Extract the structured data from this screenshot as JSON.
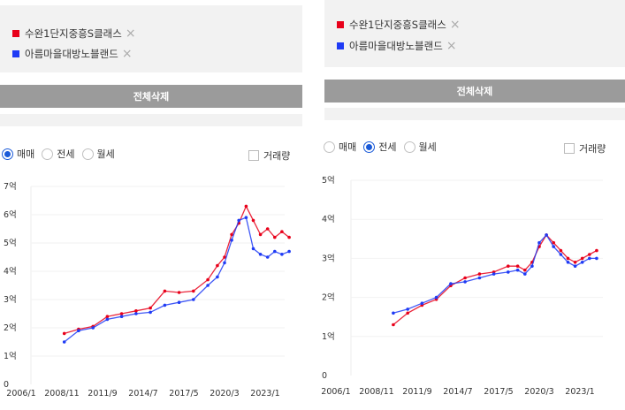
{
  "panels": [
    {
      "tags": [
        {
          "label": "수완1단지중흥S클래스",
          "color": "#e8001a"
        },
        {
          "label": "아름마을대방노블랜드",
          "color": "#1f3bf5"
        }
      ],
      "delete_all_label": "전체삭제",
      "deal_types": [
        {
          "label": "매매",
          "selected": true
        },
        {
          "label": "전세",
          "selected": false
        },
        {
          "label": "월세",
          "selected": false
        }
      ],
      "volume_label": "거래량",
      "volume_checked": false,
      "chart_data": {
        "type": "line",
        "ylim": [
          0,
          7
        ],
        "y_ticks": [
          "0",
          "1억",
          "2억",
          "3억",
          "4억",
          "5억",
          "6억",
          "7억"
        ],
        "x_ticks": [
          "2006/1",
          "2008/11",
          "2011/9",
          "2014/7",
          "2017/5",
          "2020/3",
          "2023/1"
        ],
        "x": [
          "2009/1",
          "2010/1",
          "2011/1",
          "2012/1",
          "2013/1",
          "2014/1",
          "2015/1",
          "2016/1",
          "2017/1",
          "2018/1",
          "2019/1",
          "2019/9",
          "2020/3",
          "2020/9",
          "2021/3",
          "2021/9",
          "2022/3",
          "2022/9",
          "2023/3",
          "2023/9",
          "2024/3",
          "2024/9"
        ],
        "series": [
          {
            "name": "수완1단지중흥S클래스",
            "color": "#e8001a",
            "values": [
              1.8,
              1.95,
              2.05,
              2.4,
              2.5,
              2.6,
              2.7,
              3.3,
              3.25,
              3.3,
              3.7,
              4.2,
              4.5,
              5.3,
              5.7,
              6.3,
              5.8,
              5.3,
              5.5,
              5.2,
              5.4,
              5.2
            ]
          },
          {
            "name": "아름마을대방노블랜드",
            "color": "#1f3bf5",
            "values": [
              1.5,
              1.9,
              2.0,
              2.3,
              2.4,
              2.5,
              2.55,
              2.8,
              2.9,
              3.0,
              3.5,
              3.8,
              4.3,
              5.1,
              5.8,
              5.9,
              4.8,
              4.6,
              4.5,
              4.7,
              4.6,
              4.7
            ]
          }
        ]
      }
    },
    {
      "tags": [
        {
          "label": "수완1단지중흥S클래스",
          "color": "#e8001a"
        },
        {
          "label": "아름마을대방노블랜드",
          "color": "#1f3bf5"
        }
      ],
      "delete_all_label": "전체삭제",
      "deal_types": [
        {
          "label": "매매",
          "selected": false
        },
        {
          "label": "전세",
          "selected": true
        },
        {
          "label": "월세",
          "selected": false
        }
      ],
      "volume_label": "거래량",
      "volume_checked": false,
      "chart_data": {
        "type": "line",
        "ylim": [
          0,
          5
        ],
        "y_ticks": [
          "0",
          "1억",
          "2억",
          "3억",
          "4억",
          "5억"
        ],
        "x_ticks": [
          "2006/1",
          "2008/11",
          "2011/9",
          "2014/7",
          "2017/5",
          "2020/3",
          "2023/1"
        ],
        "x": [
          "2010/1",
          "2011/1",
          "2012/1",
          "2013/1",
          "2014/1",
          "2015/1",
          "2016/1",
          "2017/1",
          "2018/1",
          "2018/9",
          "2019/3",
          "2019/9",
          "2020/3",
          "2020/9",
          "2021/3",
          "2021/9",
          "2022/3",
          "2022/9",
          "2023/3",
          "2023/9",
          "2024/3"
        ],
        "series": [
          {
            "name": "수완1단지중흥S클래스",
            "color": "#e8001a",
            "values": [
              1.3,
              1.6,
              1.8,
              1.95,
              2.3,
              2.5,
              2.6,
              2.65,
              2.8,
              2.8,
              2.7,
              2.9,
              3.3,
              3.6,
              3.4,
              3.2,
              3.0,
              2.9,
              3.0,
              3.1,
              3.2
            ]
          },
          {
            "name": "아름마을대방노블랜드",
            "color": "#1f3bf5",
            "values": [
              1.6,
              1.7,
              1.85,
              2.0,
              2.35,
              2.4,
              2.5,
              2.6,
              2.65,
              2.7,
              2.6,
              2.8,
              3.4,
              3.6,
              3.3,
              3.1,
              2.9,
              2.8,
              2.9,
              3.0,
              3.0
            ]
          }
        ]
      }
    }
  ]
}
